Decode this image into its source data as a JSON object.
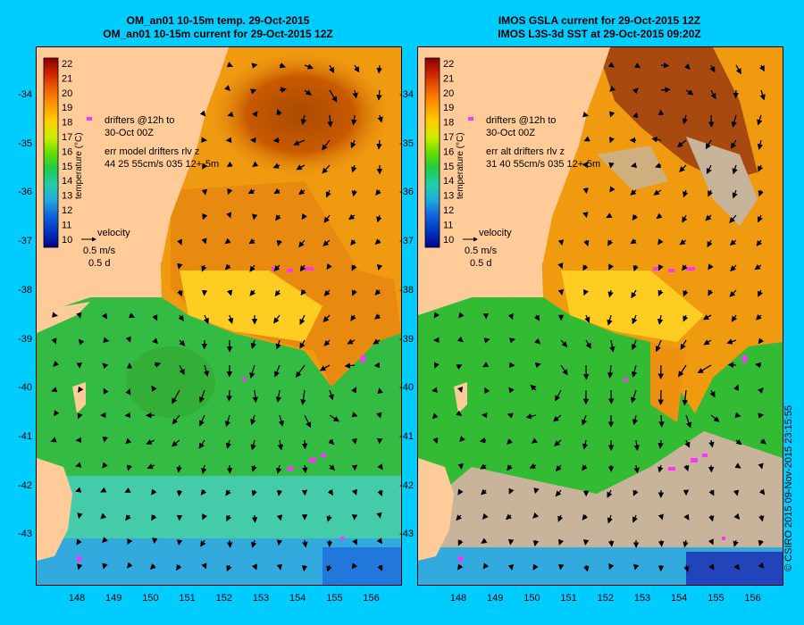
{
  "left_panel": {
    "title_line1": "OM_an01 10-15m temp. 29-Oct-2015",
    "title_line2": "OM_an01 10-15m current for 29-Oct-2015 12Z",
    "drifters_line1": "drifters @12h to",
    "drifters_line2": "30-Oct 00Z",
    "err_line1": "err model drifters rlv z",
    "err_line2": "44 25 55cm/s 035 12+-5m"
  },
  "right_panel": {
    "title_line1": "IMOS GSLA current for 29-Oct-2015 12Z",
    "title_line2": "IMOS L3S-3d SST at 29-Oct-2015 09:20Z",
    "drifters_line1": "drifters @12h to",
    "drifters_line2": "30-Oct 00Z",
    "err_line1": "err alt drifters rlv z",
    "err_line2": "31 40 55cm/s 035 12+-5m"
  },
  "colorbar": {
    "label": "temperature (°C)",
    "ticks": [
      "22",
      "21",
      "20",
      "19",
      "18",
      "17",
      "16",
      "15",
      "14",
      "13",
      "12",
      "11",
      "10"
    ]
  },
  "velocity_key": {
    "label": "velocity",
    "speed": "0.5 m/s",
    "duration": "0.5 d"
  },
  "axes": {
    "y_ticks": [
      "-34",
      "-35",
      "-36",
      "-37",
      "-38",
      "-39",
      "-40",
      "-41",
      "-42",
      "-43"
    ],
    "x_ticks": [
      "148",
      "149",
      "150",
      "151",
      "152",
      "153",
      "154",
      "155",
      "156"
    ]
  },
  "credit": "© CSIRO 2015   09-Nov-2015 23:15:55",
  "colors": {
    "background": "#00ccff",
    "land": "#ffcc99",
    "drifters": "#ff33ff",
    "missing_data": "#c8b49a"
  }
}
